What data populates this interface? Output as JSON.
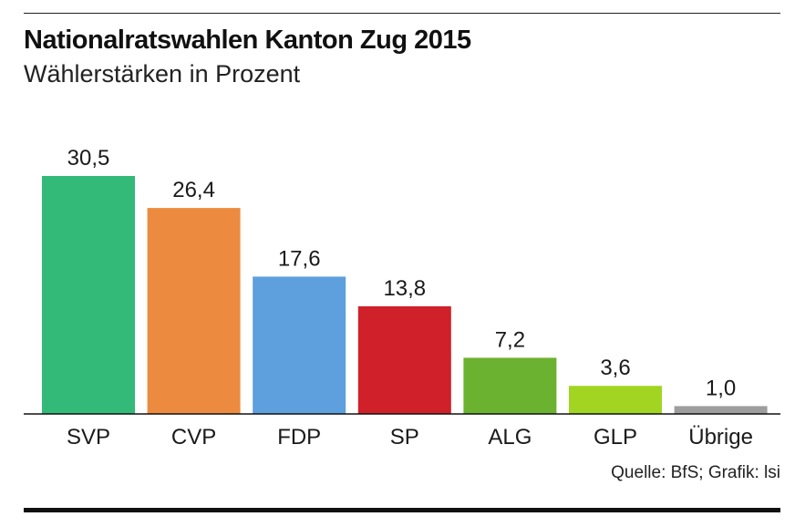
{
  "chart_data": {
    "type": "bar",
    "title": "Nationalratswahlen Kanton Zug 2015",
    "subtitle": "Wählerstärken in Prozent",
    "categories": [
      "SVP",
      "CVP",
      "FDP",
      "SP",
      "ALG",
      "GLP",
      "Übrige"
    ],
    "values": [
      30.5,
      26.4,
      17.6,
      13.8,
      7.2,
      3.6,
      1.0
    ],
    "value_labels": [
      "30,5",
      "26,4",
      "17,6",
      "13,8",
      "7,2",
      "3,6",
      "1,0"
    ],
    "colors": [
      "#33b978",
      "#ec8b3f",
      "#5e9fdd",
      "#d0202a",
      "#6ab22f",
      "#a1d522",
      "#9e9e9e"
    ],
    "ylim": [
      0,
      30.5
    ],
    "grid": false,
    "legend": "none",
    "xlabel": "",
    "ylabel": ""
  },
  "source": "Quelle: BfS; Grafik: lsi"
}
